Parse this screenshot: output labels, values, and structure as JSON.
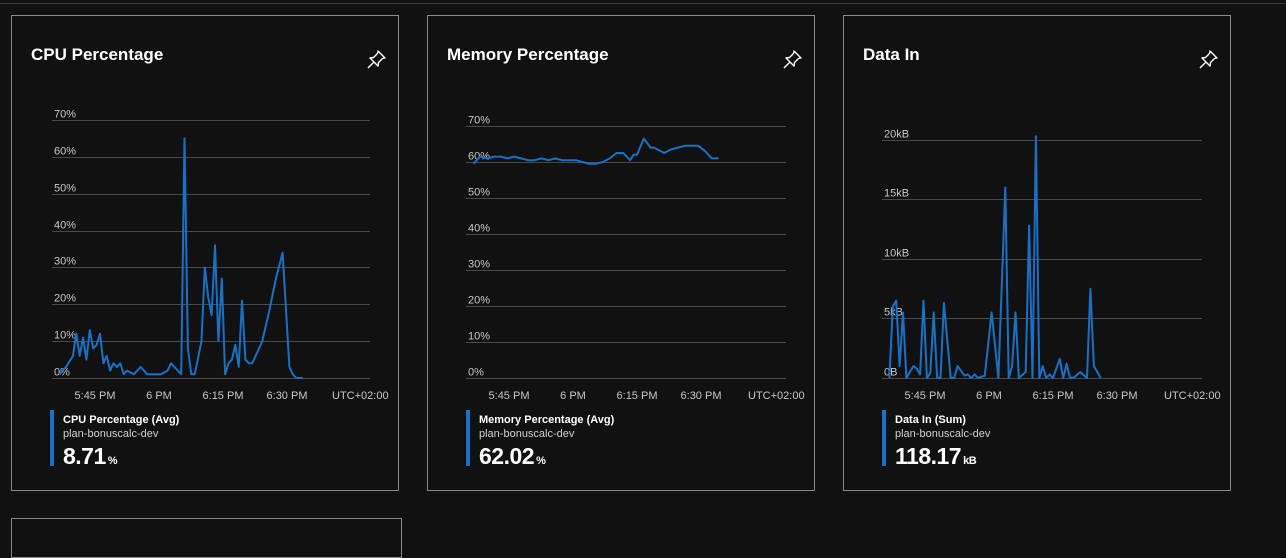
{
  "cards": [
    {
      "title": "CPU Percentage",
      "pin_icon": "pin-icon",
      "legend": {
        "series": "CPU Percentage (Avg)",
        "resource": "plan-bonuscalc-dev",
        "value": "8.71",
        "unit": "%"
      }
    },
    {
      "title": "Memory Percentage",
      "pin_icon": "pin-icon",
      "legend": {
        "series": "Memory Percentage (Avg)",
        "resource": "plan-bonuscalc-dev",
        "value": "62.02",
        "unit": "%"
      }
    },
    {
      "title": "Data In",
      "pin_icon": "pin-icon",
      "legend": {
        "series": "Data In (Sum)",
        "resource": "plan-bonuscalc-dev",
        "value": "118.17",
        "unit": "kB"
      }
    }
  ],
  "colors": {
    "line": "#1672c8",
    "grid": "#4a4a4a",
    "tick_text": "#c8c8c8",
    "card_border": "#8a8a8a",
    "background": "#111111"
  },
  "chart_data": [
    {
      "type": "line",
      "title": "CPU Percentage",
      "x_ticks": [
        "5:45 PM",
        "6 PM",
        "6:15 PM",
        "6:30 PM",
        "UTC+02:00"
      ],
      "y_ticks": [
        "0%",
        "10%",
        "20%",
        "30%",
        "40%",
        "50%",
        "60%",
        "70%"
      ],
      "ylim": [
        0,
        70
      ],
      "xlim": [
        35.5,
        76
      ],
      "grid": true,
      "series": [
        {
          "name": "CPU Percentage (Avg)",
          "x": [
            36,
            37,
            38,
            38.5,
            39,
            39.5,
            40,
            40.5,
            41,
            41.5,
            42,
            42.5,
            43,
            43.5,
            44,
            44.5,
            45,
            45.5,
            46,
            47,
            48,
            49,
            50,
            51,
            52,
            52.5,
            53,
            54,
            54.5,
            55,
            55.5,
            56,
            57,
            57.5,
            58,
            58.5,
            59,
            59.5,
            60,
            60.5,
            61,
            61.5,
            62,
            62.5,
            63,
            63.5,
            64,
            64.5,
            65,
            66,
            67,
            68,
            69,
            70,
            70.5,
            71,
            72
          ],
          "y": [
            1,
            3,
            6,
            12,
            6,
            11,
            5,
            13,
            8,
            9,
            12,
            4,
            6,
            2,
            4,
            3,
            4,
            1,
            2,
            1,
            3,
            1,
            1,
            1,
            2,
            4,
            3,
            1,
            65,
            8,
            1,
            1,
            10,
            30,
            22,
            17,
            36,
            10,
            27,
            1,
            4,
            5,
            9,
            3,
            21,
            5,
            4,
            4,
            6,
            10,
            18,
            27,
            34,
            3,
            1,
            0,
            0
          ]
        }
      ]
    },
    {
      "type": "line",
      "title": "Memory Percentage",
      "x_ticks": [
        "5:45 PM",
        "6 PM",
        "6:15 PM",
        "6:30 PM",
        "UTC+02:00"
      ],
      "y_ticks": [
        "0%",
        "10%",
        "20%",
        "30%",
        "40%",
        "50%",
        "60%",
        "70%"
      ],
      "ylim": [
        0,
        70
      ],
      "xlim": [
        35.5,
        76
      ],
      "grid": true,
      "series": [
        {
          "name": "Memory Percentage (Avg)",
          "x": [
            36,
            37,
            38,
            39,
            40,
            41,
            42,
            43,
            44,
            45,
            46,
            47,
            48,
            49,
            50,
            51,
            52,
            53,
            54,
            55,
            56,
            57,
            58,
            59,
            59.5,
            60,
            61,
            62,
            62.5,
            63,
            64,
            65,
            66,
            67,
            68,
            69,
            70,
            71,
            72
          ],
          "y": [
            59.5,
            61.5,
            61,
            61.5,
            61.5,
            61,
            61.5,
            61,
            60.5,
            60.5,
            61,
            60.5,
            61,
            60.5,
            60.5,
            60.5,
            60,
            59.5,
            59.5,
            60,
            61,
            62.5,
            62.5,
            60.5,
            62,
            62,
            66.5,
            64,
            64,
            63.5,
            62.5,
            63.5,
            64,
            64.5,
            64.5,
            64.5,
            63,
            61,
            61
          ]
        }
      ]
    },
    {
      "type": "line",
      "title": "Data In",
      "x_ticks": [
        "5:45 PM",
        "6 PM",
        "6:15 PM",
        "6:30 PM",
        "UTC+02:00"
      ],
      "y_ticks": [
        "0B",
        "5kB",
        "10kB",
        "15kB",
        "20kB"
      ],
      "y_tick_values": [
        0,
        5,
        10,
        15,
        20
      ],
      "ylim": [
        0,
        22
      ],
      "xlim": [
        35.5,
        76
      ],
      "grid": true,
      "series": [
        {
          "name": "Data In (Sum)",
          "x": [
            36,
            36.5,
            37,
            37.5,
            38,
            38.5,
            39,
            39.5,
            40,
            40.5,
            41,
            41.5,
            42,
            42.5,
            43,
            43.5,
            44,
            45,
            45.5,
            46,
            47,
            47.5,
            48,
            48.5,
            49,
            50,
            51,
            52,
            53,
            53.5,
            54,
            54.5,
            55,
            56,
            56.5,
            57,
            57.5,
            58,
            58.5,
            59,
            59.5,
            60,
            61,
            61.5,
            62,
            62.5,
            63,
            64,
            65,
            65.5,
            66,
            67
          ],
          "y": [
            0,
            6,
            6.5,
            1,
            5.5,
            0,
            0.5,
            1,
            0.8,
            0.3,
            6.5,
            0,
            0.4,
            5.5,
            0,
            0,
            6.3,
            0,
            0,
            1,
            0.2,
            0.3,
            0,
            0.3,
            0,
            0.2,
            5.5,
            0,
            16,
            0,
            1,
            5.5,
            0,
            0.5,
            12.8,
            0,
            20.3,
            0,
            1,
            0,
            0.3,
            0,
            1.6,
            0,
            1.2,
            0,
            0,
            0.5,
            0,
            7.5,
            1,
            0
          ]
        }
      ]
    }
  ]
}
